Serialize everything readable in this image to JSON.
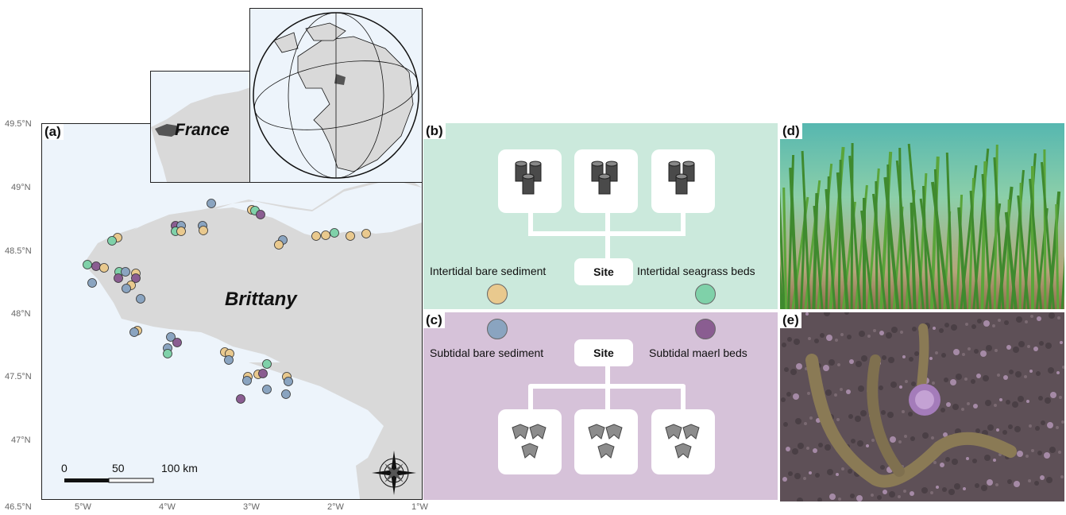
{
  "panels": {
    "a": "(a)",
    "b": "(b)",
    "c": "(c)",
    "d": "(d)",
    "e": "(e)"
  },
  "map": {
    "region_label": "Brittany",
    "country_label": "France",
    "lat_ticks": [
      "49.5°N",
      "49°N",
      "48.5°N",
      "48°N",
      "47.5°N",
      "47°N",
      "46.5°N"
    ],
    "lon_ticks": [
      "5°W",
      "4°W",
      "3°W",
      "2°W",
      "1°W"
    ],
    "scale": {
      "ticks": [
        "0",
        "50",
        "100 km"
      ]
    },
    "colors": {
      "sea": "#edf4fb",
      "land": "#d9d9d9",
      "intertidal_bare": "#e9c98e",
      "intertidal_seagrass": "#7fd1a9",
      "subtidal_bare": "#8aa4c0",
      "subtidal_maerl": "#8a5d91"
    }
  },
  "panel_b": {
    "site_label": "Site",
    "left_label": "Intertidal bare sediment",
    "right_label": "Intertidal seagrass beds",
    "left_color": "#e9c98e",
    "right_color": "#7fd1a9",
    "icon": "sediment-core-icon"
  },
  "panel_c": {
    "site_label": "Site",
    "left_label": "Subtidal bare sediment",
    "right_label": "Subtidal maerl beds",
    "left_color": "#8aa4c0",
    "right_color": "#8a5d91",
    "icon": "grab-sampler-icon"
  }
}
